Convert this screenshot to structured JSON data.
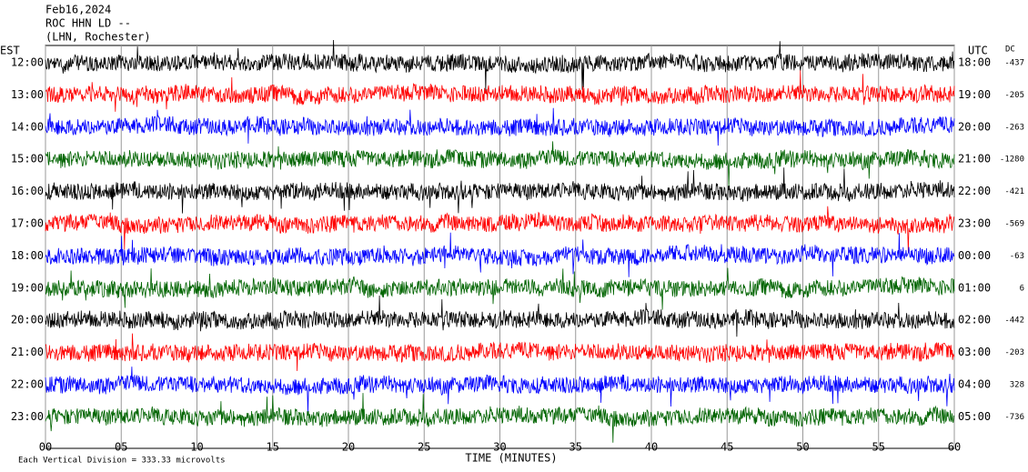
{
  "chart_data": {
    "type": "helicorder",
    "title": [
      "Feb16,2024",
      "ROC HHN LD --",
      "(LHN, Rochester)"
    ],
    "left_axis_label": "EST",
    "right_axis_label": "UTC",
    "dc_label": "DC",
    "x_label": "TIME (MINUTES)",
    "footnote": "Each Vertical Division = 333.33 microvolts",
    "xlim": [
      0,
      60
    ],
    "xticks": [
      {
        "value": 0,
        "label": "00"
      },
      {
        "value": 5,
        "label": "05"
      },
      10,
      15,
      20,
      25,
      30,
      35,
      40,
      45,
      50,
      55,
      60
    ],
    "trace_colors": [
      "#000000",
      "#ff0000",
      "#0000ff",
      "#006400"
    ],
    "rows": [
      {
        "est": "12:00",
        "utc": "18:00",
        "dc": -437
      },
      {
        "est": "13:00",
        "utc": "19:00",
        "dc": -205
      },
      {
        "est": "14:00",
        "utc": "20:00",
        "dc": -263
      },
      {
        "est": "15:00",
        "utc": "21:00",
        "dc": -1280
      },
      {
        "est": "16:00",
        "utc": "22:00",
        "dc": -421
      },
      {
        "est": "17:00",
        "utc": "23:00",
        "dc": -569
      },
      {
        "est": "18:00",
        "utc": "00:00",
        "dc": -63
      },
      {
        "est": "19:00",
        "utc": "01:00",
        "dc": 6
      },
      {
        "est": "20:00",
        "utc": "02:00",
        "dc": -442
      },
      {
        "est": "21:00",
        "utc": "03:00",
        "dc": -203
      },
      {
        "est": "22:00",
        "utc": "04:00",
        "dc": 328
      },
      {
        "est": "23:00",
        "utc": "05:00",
        "dc": -736
      }
    ]
  }
}
